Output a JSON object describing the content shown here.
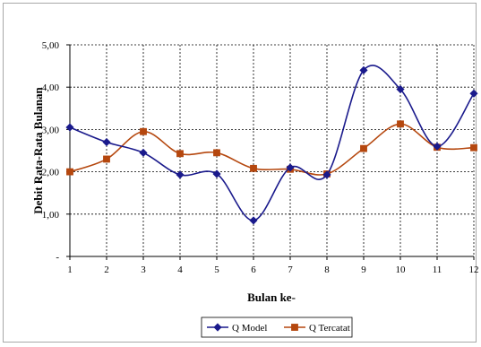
{
  "chart_data": {
    "type": "line",
    "title": "",
    "xlabel": "Bulan ke-",
    "ylabel": "Debit Rata-Rata Bulanan",
    "categories": [
      "1",
      "2",
      "3",
      "4",
      "5",
      "6",
      "7",
      "8",
      "9",
      "10",
      "11",
      "12"
    ],
    "y_tick_labels": [
      "-",
      "1,00",
      "2,00",
      "3,00",
      "4,00",
      "5,00"
    ],
    "ylim": [
      0,
      5
    ],
    "grid": true,
    "smooth": true,
    "legend_position": "bottom",
    "series": [
      {
        "name": "Q Model",
        "color": "#1a1a8c",
        "marker": "diamond",
        "values": [
          3.05,
          2.7,
          2.45,
          1.93,
          1.95,
          0.85,
          2.1,
          1.93,
          4.4,
          3.95,
          2.6,
          3.85
        ]
      },
      {
        "name": "Q Tercatat",
        "color": "#b5470e",
        "marker": "square",
        "values": [
          2.0,
          2.3,
          2.95,
          2.43,
          2.45,
          2.08,
          2.06,
          1.95,
          2.55,
          3.13,
          2.58,
          2.57
        ]
      }
    ]
  }
}
